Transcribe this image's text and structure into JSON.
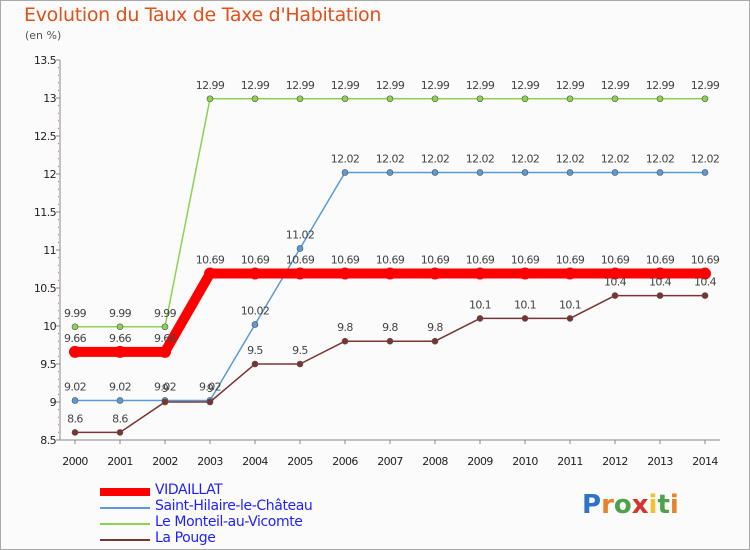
{
  "header": {
    "title": "Evolution du Taux de Taxe d'Habitation",
    "subtitle": "(en %)"
  },
  "chart_data": {
    "type": "line",
    "title": "Evolution du Taux de Taxe d'Habitation",
    "subtitle": "(en %)",
    "x": [
      "2000",
      "2001",
      "2002",
      "2003",
      "2004",
      "2005",
      "2006",
      "2007",
      "2008",
      "2009",
      "2010",
      "2011",
      "2012",
      "2013",
      "2014"
    ],
    "ylim": [
      8.5,
      13.5
    ],
    "yticks": [
      "8.5",
      "9",
      "9.5",
      "10",
      "10.5",
      "11",
      "11.5",
      "12",
      "12.5",
      "13",
      "13.5"
    ],
    "grid": false,
    "legend_position": "bottom-left",
    "series": [
      {
        "name": "VIDAILLAT",
        "color": "#ff0000",
        "values": [
          9.66,
          9.66,
          9.66,
          10.69,
          10.69,
          10.69,
          10.69,
          10.69,
          10.69,
          10.69,
          10.69,
          10.69,
          10.69,
          10.69,
          10.69
        ],
        "labels": [
          "9.66",
          "9.66",
          "9.66",
          "10.69",
          "10.69",
          "10.69",
          "10.69",
          "10.69",
          "10.69",
          "10.69",
          "10.69",
          "10.69",
          "10.69",
          "10.69",
          "10.69"
        ]
      },
      {
        "name": "Saint-Hilaire-le-Château",
        "color": "#5b9bd5",
        "values": [
          9.02,
          9.02,
          9.02,
          9.02,
          10.02,
          11.02,
          12.02,
          12.02,
          12.02,
          12.02,
          12.02,
          12.02,
          12.02,
          12.02,
          12.02
        ],
        "labels": [
          "9.02",
          "9.02",
          "9.02",
          "9.02",
          "10.02",
          "11.02",
          "12.02",
          "12.02",
          "12.02",
          "12.02",
          "12.02",
          "12.02",
          "12.02",
          "12.02",
          "12.02"
        ]
      },
      {
        "name": "Le Monteil-au-Vicomte",
        "color": "#8cd250",
        "values": [
          9.99,
          9.99,
          9.99,
          12.99,
          12.99,
          12.99,
          12.99,
          12.99,
          12.99,
          12.99,
          12.99,
          12.99,
          12.99,
          12.99,
          12.99
        ],
        "labels": [
          "9.99",
          "9.99",
          "9.99",
          "12.99",
          "12.99",
          "12.99",
          "12.99",
          "12.99",
          "12.99",
          "12.99",
          "12.99",
          "12.99",
          "12.99",
          "12.99",
          "12.99"
        ]
      },
      {
        "name": "La Pouge",
        "color": "#7a3434",
        "values": [
          8.6,
          8.6,
          9.0,
          9.0,
          9.5,
          9.5,
          9.8,
          9.8,
          9.8,
          10.1,
          10.1,
          10.1,
          10.4,
          10.4,
          10.4
        ],
        "labels": [
          "8.6",
          "8.6",
          "9",
          "9",
          "9.5",
          "9.5",
          "9.8",
          "9.8",
          "9.8",
          "10.1",
          "10.1",
          "10.1",
          "10.4",
          "10.4",
          "10.4"
        ]
      }
    ]
  },
  "legend": {
    "items": [
      {
        "label": "VIDAILLAT",
        "color": "#ff0000",
        "text_color": "#1f1fff"
      },
      {
        "label": "Saint-Hilaire-le-Château",
        "color": "#5b9bd5",
        "text_color": "#1f1fff"
      },
      {
        "label": "Le Monteil-au-Vicomte",
        "color": "#8cd250",
        "text_color": "#1f1fff"
      },
      {
        "label": "La Pouge",
        "color": "#7a3434",
        "text_color": "#1f1fff"
      }
    ]
  },
  "logo": {
    "letters": [
      "P",
      "r",
      "o",
      "x",
      "i",
      "t",
      "i"
    ]
  }
}
